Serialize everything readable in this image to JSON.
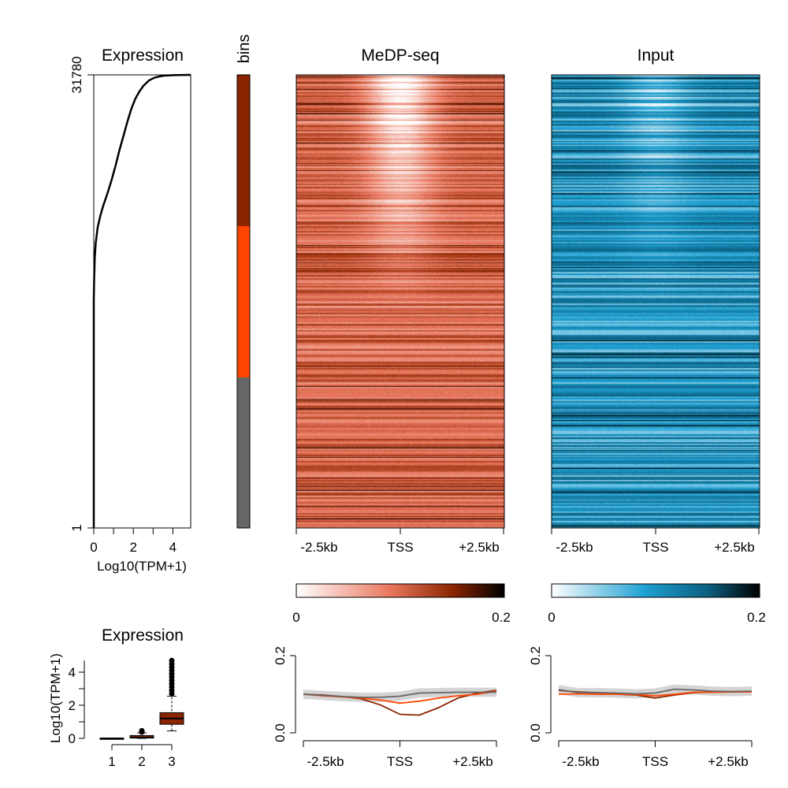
{
  "expression_curve": {
    "title": "Expression",
    "xlabel": "Log10(TPM+1)",
    "xticks": [
      "0",
      "2",
      "4"
    ],
    "xtick_values": [
      0,
      2,
      4
    ],
    "xlim": [
      0,
      4.9
    ],
    "yticks": [
      "31780",
      "1"
    ],
    "ytick_values": [
      31780,
      1
    ],
    "ylim": [
      1,
      31780
    ]
  },
  "bins": {
    "label": "bins",
    "colors": [
      "#8b2500",
      "#ff4500",
      "#666666"
    ]
  },
  "heatmaps": [
    {
      "title": "MeDP-seq",
      "xticks": [
        "-2.5kb",
        "TSS",
        "+2.5kb"
      ],
      "colorbar": {
        "min_label": "0",
        "max_label": "0.2",
        "colors": [
          "#ffffff",
          "#e9775e",
          "#8b2500",
          "#000000"
        ]
      }
    },
    {
      "title": "Input",
      "xticks": [
        "-2.5kb",
        "TSS",
        "+2.5kb"
      ],
      "colorbar": {
        "min_label": "0",
        "max_label": "0.2",
        "colors": [
          "#ffffff",
          "#1ea0d2",
          "#0c5f80",
          "#000000"
        ]
      }
    }
  ],
  "boxplot": {
    "title": "Expression",
    "ylabel": "Log10(TPM+1)",
    "yticks": [
      "0",
      "2",
      "4"
    ],
    "ytick_values": [
      0,
      2,
      4
    ],
    "ylim": [
      0,
      5
    ],
    "categories": [
      "1",
      "2",
      "3"
    ],
    "fills": [
      "#666666",
      "#ff4500",
      "#8b2500"
    ]
  },
  "profiles": [
    {
      "yticks": [
        "0.0",
        "0.2"
      ],
      "ytick_values": [
        0,
        0.2
      ],
      "xticks": [
        "-2.5kb",
        "TSS",
        "+2.5kb"
      ]
    },
    {
      "yticks": [
        "0.0",
        "0.2"
      ],
      "ytick_values": [
        0,
        0.2
      ],
      "xticks": [
        "-2.5kb",
        "TSS",
        "+2.5kb"
      ]
    }
  ],
  "chart_data": [
    {
      "type": "line",
      "title": "Expression",
      "xlabel": "Log10(TPM+1)",
      "ylabel": "",
      "xlim": [
        0,
        4.9
      ],
      "ylim": [
        1,
        31780
      ],
      "series": [
        {
          "x": [
            0,
            0,
            0.02,
            0.05,
            0.1,
            0.2,
            0.35,
            0.5,
            0.7,
            0.9,
            1.1,
            1.3,
            1.5,
            1.7,
            1.9,
            2.1,
            2.3,
            2.5,
            2.8,
            3.1,
            3.5,
            4.0,
            4.9
          ],
          "y": [
            1,
            16000,
            17500,
            19000,
            20000,
            21100,
            22000,
            22700,
            23500,
            24400,
            25400,
            26500,
            27500,
            28500,
            29400,
            30100,
            30600,
            31000,
            31400,
            31600,
            31720,
            31760,
            31780
          ]
        }
      ]
    },
    {
      "type": "heatmap",
      "title": "MeDP-seq",
      "x": [
        "-2.5kb",
        "TSS",
        "+2.5kb"
      ],
      "value_range": [
        0,
        0.2
      ]
    },
    {
      "type": "heatmap",
      "title": "Input",
      "x": [
        "-2.5kb",
        "TSS",
        "+2.5kb"
      ],
      "value_range": [
        0,
        0.2
      ]
    },
    {
      "type": "box",
      "title": "Expression",
      "ylabel": "Log10(TPM+1)",
      "categories": [
        "1",
        "2",
        "3"
      ],
      "ylim": [
        0,
        5
      ],
      "boxes": [
        {
          "min": 0,
          "q1": 0,
          "median": 0,
          "q3": 0.01,
          "max": 0.02
        },
        {
          "min": 0,
          "q1": 0.02,
          "median": 0.07,
          "q3": 0.17,
          "max": 0.33,
          "outliers": [
            0.38,
            0.42,
            0.46
          ]
        },
        {
          "min": 0.45,
          "q1": 0.85,
          "median": 1.2,
          "q3": 1.55,
          "max": 2.55,
          "outliers": [
            2.7,
            2.9,
            3.1,
            3.3,
            3.5,
            3.7,
            3.9,
            4.1,
            4.3,
            4.5,
            4.7
          ]
        }
      ]
    },
    {
      "type": "line",
      "title": "",
      "ylim": [
        0,
        0.2
      ],
      "x": [
        -2.5,
        -2.0,
        -1.5,
        -1.0,
        -0.5,
        0,
        0.5,
        1.0,
        1.5,
        2.0,
        2.5
      ],
      "series": [
        {
          "color": "#8b2500",
          "values": [
            0.1,
            0.098,
            0.094,
            0.088,
            0.072,
            0.048,
            0.046,
            0.065,
            0.09,
            0.103,
            0.11
          ]
        },
        {
          "color": "#ff4500",
          "values": [
            0.1,
            0.096,
            0.093,
            0.09,
            0.085,
            0.077,
            0.082,
            0.09,
            0.096,
            0.1,
            0.108
          ]
        },
        {
          "color": "#666666",
          "values": [
            0.1,
            0.097,
            0.094,
            0.092,
            0.092,
            0.095,
            0.103,
            0.104,
            0.105,
            0.105,
            0.105
          ]
        }
      ]
    },
    {
      "type": "line",
      "title": "",
      "ylim": [
        0,
        0.2
      ],
      "x": [
        -2.5,
        -2.0,
        -1.5,
        -1.0,
        -0.5,
        0,
        0.5,
        1.0,
        1.5,
        2.0,
        2.5
      ],
      "series": [
        {
          "color": "#8b2500",
          "values": [
            0.11,
            0.106,
            0.104,
            0.1,
            0.098,
            0.09,
            0.098,
            0.104,
            0.106,
            0.107,
            0.107
          ]
        },
        {
          "color": "#ff4500",
          "values": [
            0.1,
            0.101,
            0.1,
            0.1,
            0.099,
            0.096,
            0.1,
            0.105,
            0.105,
            0.106,
            0.106
          ]
        },
        {
          "color": "#666666",
          "values": [
            0.112,
            0.104,
            0.104,
            0.103,
            0.101,
            0.103,
            0.113,
            0.111,
            0.108,
            0.107,
            0.108
          ]
        }
      ]
    }
  ]
}
